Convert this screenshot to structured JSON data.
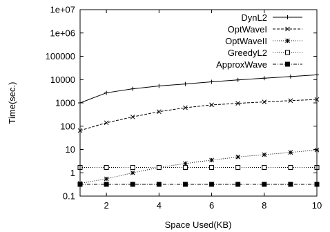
{
  "chart_data": {
    "type": "line",
    "title": "",
    "xlabel": "Space Used(KB)",
    "ylabel": "Time(sec.)",
    "x_scale": "linear",
    "y_scale": "log",
    "xlim": [
      1,
      10
    ],
    "ylim": [
      0.1,
      10000000
    ],
    "x_ticks": [
      2,
      4,
      6,
      8,
      10
    ],
    "x_tick_labels": [
      "2",
      "4",
      "6",
      "8",
      "10"
    ],
    "y_ticks": [
      0.1,
      1,
      10,
      100,
      1000,
      10000,
      100000,
      1000000,
      10000000
    ],
    "y_tick_labels": [
      "0.1",
      "1",
      "10",
      "100",
      "1000",
      "10000",
      "100000",
      "1e+06",
      "1e+07"
    ],
    "grid": false,
    "legend_position": "top-right",
    "x": [
      1,
      2,
      3,
      4,
      5,
      6,
      7,
      8,
      9,
      10
    ],
    "series": [
      {
        "name": "DynL2",
        "values": [
          1000,
          2700,
          4000,
          5300,
          6500,
          8000,
          9700,
          11500,
          13500,
          16000
        ],
        "line_style": "solid",
        "marker": "plus"
      },
      {
        "name": "OptWaveI",
        "values": [
          65,
          140,
          250,
          420,
          620,
          820,
          960,
          1100,
          1250,
          1400
        ],
        "line_style": "dashed",
        "marker": "x"
      },
      {
        "name": "OptWaveII",
        "values": [
          0.35,
          0.55,
          1.0,
          1.7,
          2.5,
          3.5,
          4.8,
          6.0,
          7.5,
          9.5
        ],
        "line_style": "dotted",
        "marker": "star"
      },
      {
        "name": "GreedyL2",
        "values": [
          1.7,
          1.7,
          1.7,
          1.7,
          1.7,
          1.7,
          1.7,
          1.7,
          1.7,
          1.7
        ],
        "line_style": "dotted",
        "marker": "open-square"
      },
      {
        "name": "ApproxWave",
        "values": [
          0.32,
          0.32,
          0.32,
          0.32,
          0.32,
          0.32,
          0.32,
          0.32,
          0.32,
          0.32
        ],
        "line_style": "dash-dot",
        "marker": "filled-square"
      }
    ]
  }
}
